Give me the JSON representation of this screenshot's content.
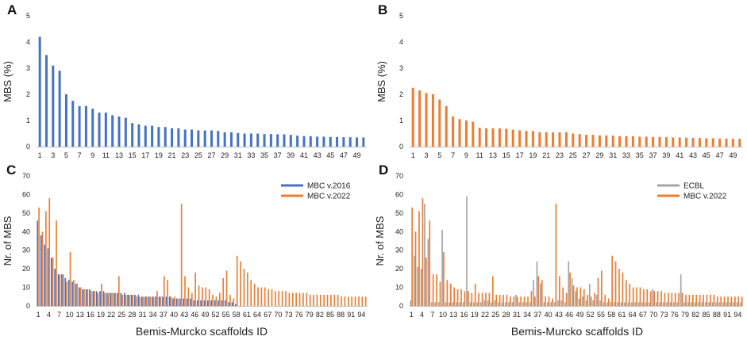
{
  "figure": {
    "colors": {
      "blue": "#4472C4",
      "orange": "#ED7D31",
      "gray": "#A5A5A5",
      "axis": "#BFBFBF"
    }
  },
  "chart_data": [
    {
      "id": "A",
      "panel_label": "A",
      "type": "bar",
      "ylabel": "MBS (%)",
      "xlabel": "",
      "ylim": [
        0,
        5
      ],
      "yticks": [
        0,
        1,
        2,
        3,
        4,
        5
      ],
      "x_range": [
        1,
        50
      ],
      "x_tick_labels": [
        1,
        3,
        5,
        7,
        9,
        11,
        13,
        15,
        17,
        19,
        21,
        23,
        25,
        27,
        29,
        31,
        33,
        35,
        37,
        39,
        41,
        43,
        45,
        47,
        49
      ],
      "series": [
        {
          "name": "MBC v.2016",
          "color": "#4472C4",
          "values": [
            4.2,
            3.5,
            3.1,
            2.9,
            2.0,
            1.75,
            1.55,
            1.55,
            1.45,
            1.3,
            1.3,
            1.2,
            1.15,
            1.1,
            0.9,
            0.85,
            0.8,
            0.8,
            0.75,
            0.75,
            0.7,
            0.7,
            0.65,
            0.65,
            0.62,
            0.62,
            0.62,
            0.6,
            0.55,
            0.55,
            0.52,
            0.5,
            0.5,
            0.5,
            0.48,
            0.48,
            0.47,
            0.47,
            0.45,
            0.42,
            0.4,
            0.4,
            0.38,
            0.38,
            0.37,
            0.37,
            0.36,
            0.36,
            0.35,
            0.35
          ]
        }
      ]
    },
    {
      "id": "B",
      "panel_label": "B",
      "type": "bar",
      "ylabel": "MBS (%)",
      "xlabel": "",
      "ylim": [
        0,
        5
      ],
      "yticks": [
        0,
        1,
        2,
        3,
        4,
        5
      ],
      "x_range": [
        1,
        50
      ],
      "x_tick_labels": [
        1,
        3,
        5,
        7,
        9,
        11,
        13,
        15,
        17,
        19,
        21,
        23,
        25,
        27,
        29,
        31,
        33,
        35,
        37,
        39,
        41,
        43,
        45,
        47,
        49
      ],
      "series": [
        {
          "name": "MBC v.2022",
          "color": "#ED7D31",
          "values": [
            2.25,
            2.15,
            2.05,
            2.0,
            1.8,
            1.55,
            1.15,
            1.05,
            1.0,
            0.95,
            0.72,
            0.7,
            0.7,
            0.7,
            0.68,
            0.65,
            0.62,
            0.6,
            0.6,
            0.55,
            0.55,
            0.55,
            0.55,
            0.55,
            0.5,
            0.48,
            0.45,
            0.45,
            0.43,
            0.43,
            0.42,
            0.4,
            0.4,
            0.4,
            0.38,
            0.38,
            0.37,
            0.37,
            0.36,
            0.35,
            0.35,
            0.34,
            0.33,
            0.33,
            0.32,
            0.32,
            0.31,
            0.3,
            0.3,
            0.3
          ]
        }
      ]
    },
    {
      "id": "C",
      "panel_label": "C",
      "type": "bar",
      "ylabel": "Nr. of MBS",
      "xlabel": "Bemis-Murcko scaffolds ID",
      "ylim": [
        0,
        70
      ],
      "yticks": [
        0,
        10,
        20,
        30,
        40,
        50,
        60,
        70
      ],
      "x_range": [
        1,
        95
      ],
      "x_tick_labels": [
        1,
        4,
        7,
        10,
        13,
        16,
        19,
        22,
        25,
        28,
        31,
        34,
        37,
        40,
        43,
        46,
        49,
        52,
        55,
        58,
        61,
        64,
        67,
        70,
        73,
        76,
        79,
        82,
        85,
        88,
        91,
        94
      ],
      "legend": {
        "position": "top-right",
        "entries": [
          "MBC v.2016",
          "MBC v.2022"
        ]
      },
      "series": [
        {
          "name": "MBC v.2016",
          "color": "#4472C4",
          "values": [
            46,
            38,
            33,
            31,
            26,
            20,
            17,
            17,
            15,
            14,
            13,
            12,
            10,
            9,
            9,
            9,
            8,
            8,
            8,
            8,
            7,
            7,
            7,
            7,
            7,
            7,
            6,
            6,
            6,
            6,
            5,
            5,
            5,
            5,
            5,
            5,
            5,
            5,
            5,
            4,
            4,
            4,
            4,
            4,
            4,
            3,
            3,
            3,
            3,
            3,
            3,
            3,
            3,
            3,
            3,
            2,
            2,
            1
          ]
        },
        {
          "name": "MBC v.2022",
          "color": "#ED7D31",
          "values": [
            53,
            40,
            51,
            58,
            26,
            46,
            17,
            17,
            13,
            29,
            14,
            12,
            10,
            9,
            9,
            8,
            8,
            7,
            12,
            7,
            7,
            7,
            7,
            16,
            6,
            6,
            6,
            6,
            5,
            5,
            5,
            5,
            5,
            5,
            8,
            5,
            16,
            14,
            5,
            5,
            4,
            55,
            16,
            10,
            7,
            18,
            11,
            10,
            10,
            9,
            6,
            5,
            7,
            15,
            19,
            6,
            4,
            27,
            24,
            20,
            18,
            14,
            12,
            10,
            10,
            10,
            9,
            9,
            8,
            8,
            8,
            8,
            7,
            7,
            7,
            7,
            7,
            7,
            6,
            6,
            6,
            6,
            6,
            6,
            6,
            6,
            6,
            5,
            5,
            5,
            5,
            5,
            5,
            5,
            5
          ]
        }
      ]
    },
    {
      "id": "D",
      "panel_label": "D",
      "type": "bar",
      "ylabel": "Nr. of MBS",
      "xlabel": "Bemis-Murcko scaffolds ID",
      "ylim": [
        0,
        70
      ],
      "yticks": [
        0,
        10,
        20,
        30,
        40,
        50,
        60,
        70
      ],
      "x_range": [
        1,
        95
      ],
      "x_tick_labels": [
        1,
        4,
        7,
        10,
        13,
        16,
        19,
        22,
        25,
        28,
        31,
        34,
        37,
        40,
        43,
        46,
        49,
        52,
        55,
        58,
        61,
        64,
        67,
        70,
        73,
        76,
        79,
        82,
        85,
        88,
        91,
        94
      ],
      "legend": {
        "position": "top-right",
        "entries": [
          "ECBL",
          "MBC v.2022"
        ]
      },
      "series": [
        {
          "name": "ECBL",
          "color": "#A5A5A5",
          "values": [
            3,
            27,
            21,
            20,
            55,
            36,
            2,
            2,
            2,
            41,
            2,
            2,
            2,
            2,
            2,
            2,
            59,
            2,
            2,
            2,
            2,
            3,
            3,
            2,
            3,
            2,
            2,
            2,
            2,
            2,
            6,
            2,
            2,
            2,
            2,
            14,
            24,
            12,
            2,
            2,
            2,
            2,
            3,
            3,
            2,
            24,
            15,
            8,
            4,
            5,
            3,
            12,
            3,
            6,
            3,
            2,
            2,
            2,
            2,
            2,
            2,
            2,
            2,
            2,
            2,
            2,
            2,
            2,
            2,
            9,
            2,
            2,
            2,
            2,
            2,
            2,
            2,
            17,
            2,
            2,
            2,
            2,
            2,
            2,
            2,
            2,
            2,
            2,
            2,
            2,
            2,
            2,
            2,
            2,
            2
          ]
        },
        {
          "name": "MBC v.2022",
          "color": "#ED7D31",
          "values": [
            53,
            40,
            51,
            58,
            26,
            46,
            17,
            17,
            13,
            29,
            14,
            12,
            10,
            9,
            9,
            8,
            8,
            7,
            12,
            7,
            7,
            7,
            7,
            16,
            6,
            6,
            6,
            6,
            5,
            5,
            5,
            5,
            5,
            5,
            8,
            5,
            16,
            14,
            5,
            5,
            4,
            55,
            16,
            10,
            7,
            18,
            11,
            10,
            10,
            9,
            6,
            5,
            7,
            15,
            19,
            6,
            4,
            27,
            24,
            20,
            18,
            14,
            12,
            10,
            10,
            10,
            9,
            9,
            8,
            8,
            8,
            8,
            7,
            7,
            7,
            7,
            7,
            7,
            6,
            6,
            6,
            6,
            6,
            6,
            6,
            6,
            6,
            5,
            5,
            5,
            5,
            5,
            5,
            5,
            5
          ]
        }
      ]
    }
  ]
}
